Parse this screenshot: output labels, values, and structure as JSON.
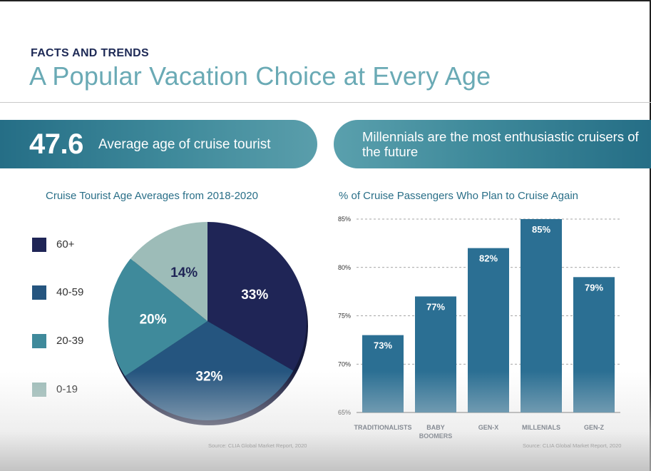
{
  "header": {
    "eyebrow": "FACTS AND TRENDS",
    "title": "A Popular Vacation Choice at Every Age"
  },
  "banner_left": {
    "number": "47.6",
    "label": "Average age of cruise tourist"
  },
  "banner_right": {
    "text": "Millennials are the most enthusiastic cruisers of the future"
  },
  "colors": {
    "navy": "#1f2556",
    "blue": "#25557f",
    "teal": "#3f8a9b",
    "sage": "#9dbcb8",
    "bar": "#2b6f93",
    "title_teal": "#2a6f88"
  },
  "chart_data": [
    {
      "type": "pie",
      "title": "Cruise Tourist Age Averages from 2018-2020",
      "categories": [
        "60+",
        "40-59",
        "20-39",
        "0-19"
      ],
      "values": [
        33,
        32,
        20,
        14
      ],
      "labels": [
        "33%",
        "32%",
        "20%",
        "14%"
      ],
      "colors": [
        "#1f2556",
        "#25557f",
        "#3f8a9b",
        "#9dbcb8"
      ],
      "legend": "left",
      "source": "Source: CLIA Global Market Report, 2020"
    },
    {
      "type": "bar",
      "title": "% of Cruise Passengers Who Plan to Cruise Again",
      "categories": [
        "TRADITIONALISTS",
        "BABY BOOMERS",
        "GEN-X",
        "MILLENIALS",
        "GEN-Z"
      ],
      "values": [
        73,
        77,
        82,
        85,
        79
      ],
      "labels": [
        "73%",
        "77%",
        "82%",
        "85%",
        "79%"
      ],
      "ylim": [
        65,
        85
      ],
      "yticks": [
        "65%",
        "70%",
        "75%",
        "80%",
        "85%"
      ],
      "ytick_values": [
        65,
        70,
        75,
        80,
        85
      ],
      "grid": true,
      "source": "Source: CLIA Global Market Report, 2020"
    }
  ]
}
